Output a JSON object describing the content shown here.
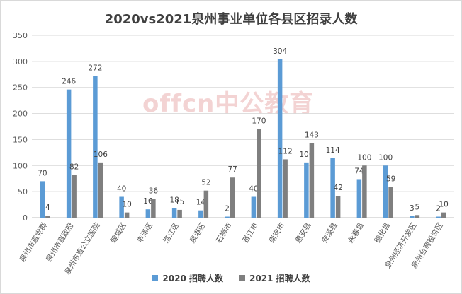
{
  "colors": {
    "series_2020": "#5B9BD5",
    "series_2021": "#7F7F7F",
    "grid": "#d9d9d9",
    "text": "#595959",
    "watermark": "#f3d3d3"
  },
  "watermark": "offcn中公教育",
  "chart_data": {
    "type": "bar",
    "title": "2020vs2021泉州事业单位各县区招录人数",
    "categories": [
      "泉州市直党群",
      "泉州市直政府",
      "泉州市直公立医院",
      "鲤城区",
      "丰泽区",
      "洛江区",
      "泉港区",
      "石狮市",
      "晋江市",
      "南安市",
      "惠安县",
      "安溪县",
      "永春县",
      "德化县",
      "泉州经济开发区",
      "泉州台商投资区"
    ],
    "series": [
      {
        "name": "2020 招聘人数",
        "values": [
          70,
          246,
          272,
          40,
          16,
          18,
          14,
          2,
          40,
          304,
          106,
          114,
          74,
          100,
          3,
          2
        ]
      },
      {
        "name": "2021 招聘人数",
        "values": [
          4,
          82,
          106,
          10,
          36,
          15,
          52,
          77,
          170,
          112,
          143,
          42,
          100,
          59,
          5,
          10
        ]
      }
    ],
    "yticks": [
      0,
      50,
      100,
      150,
      200,
      250,
      300,
      350
    ],
    "ylim": [
      0,
      350
    ],
    "grid": true,
    "legend": "bottom"
  }
}
